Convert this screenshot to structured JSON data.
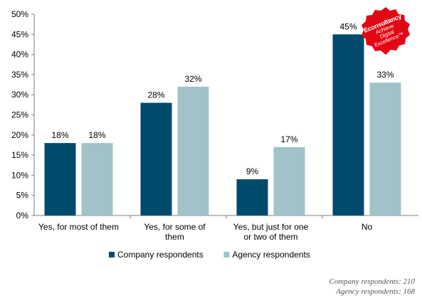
{
  "chart_data": {
    "type": "bar",
    "categories": [
      [
        "Yes, for most of them"
      ],
      [
        "Yes, for some of",
        "them"
      ],
      [
        "Yes, but just for one",
        "or two of them"
      ],
      [
        "No"
      ]
    ],
    "series": [
      {
        "name": "Company respondents",
        "values": [
          18,
          28,
          9,
          45
        ],
        "color": "#004b6c"
      },
      {
        "name": "Agency respondents",
        "values": [
          18,
          32,
          17,
          33
        ],
        "color": "#9fc3c8"
      }
    ],
    "ylim": [
      0,
      50
    ],
    "yticks": [
      0,
      5,
      10,
      15,
      20,
      25,
      30,
      35,
      40,
      45,
      50
    ],
    "tick_suffix": "%",
    "label_suffix": "%",
    "grid": false,
    "legend": "bottom-center"
  },
  "footnotes": {
    "company": "Company respondents: 210",
    "agency": "Agency respondents: 168"
  },
  "logo": {
    "brand": "Econsultancy",
    "tagline": [
      "Achieve",
      "Digital",
      "Excellence™"
    ],
    "color": "#e30613"
  }
}
